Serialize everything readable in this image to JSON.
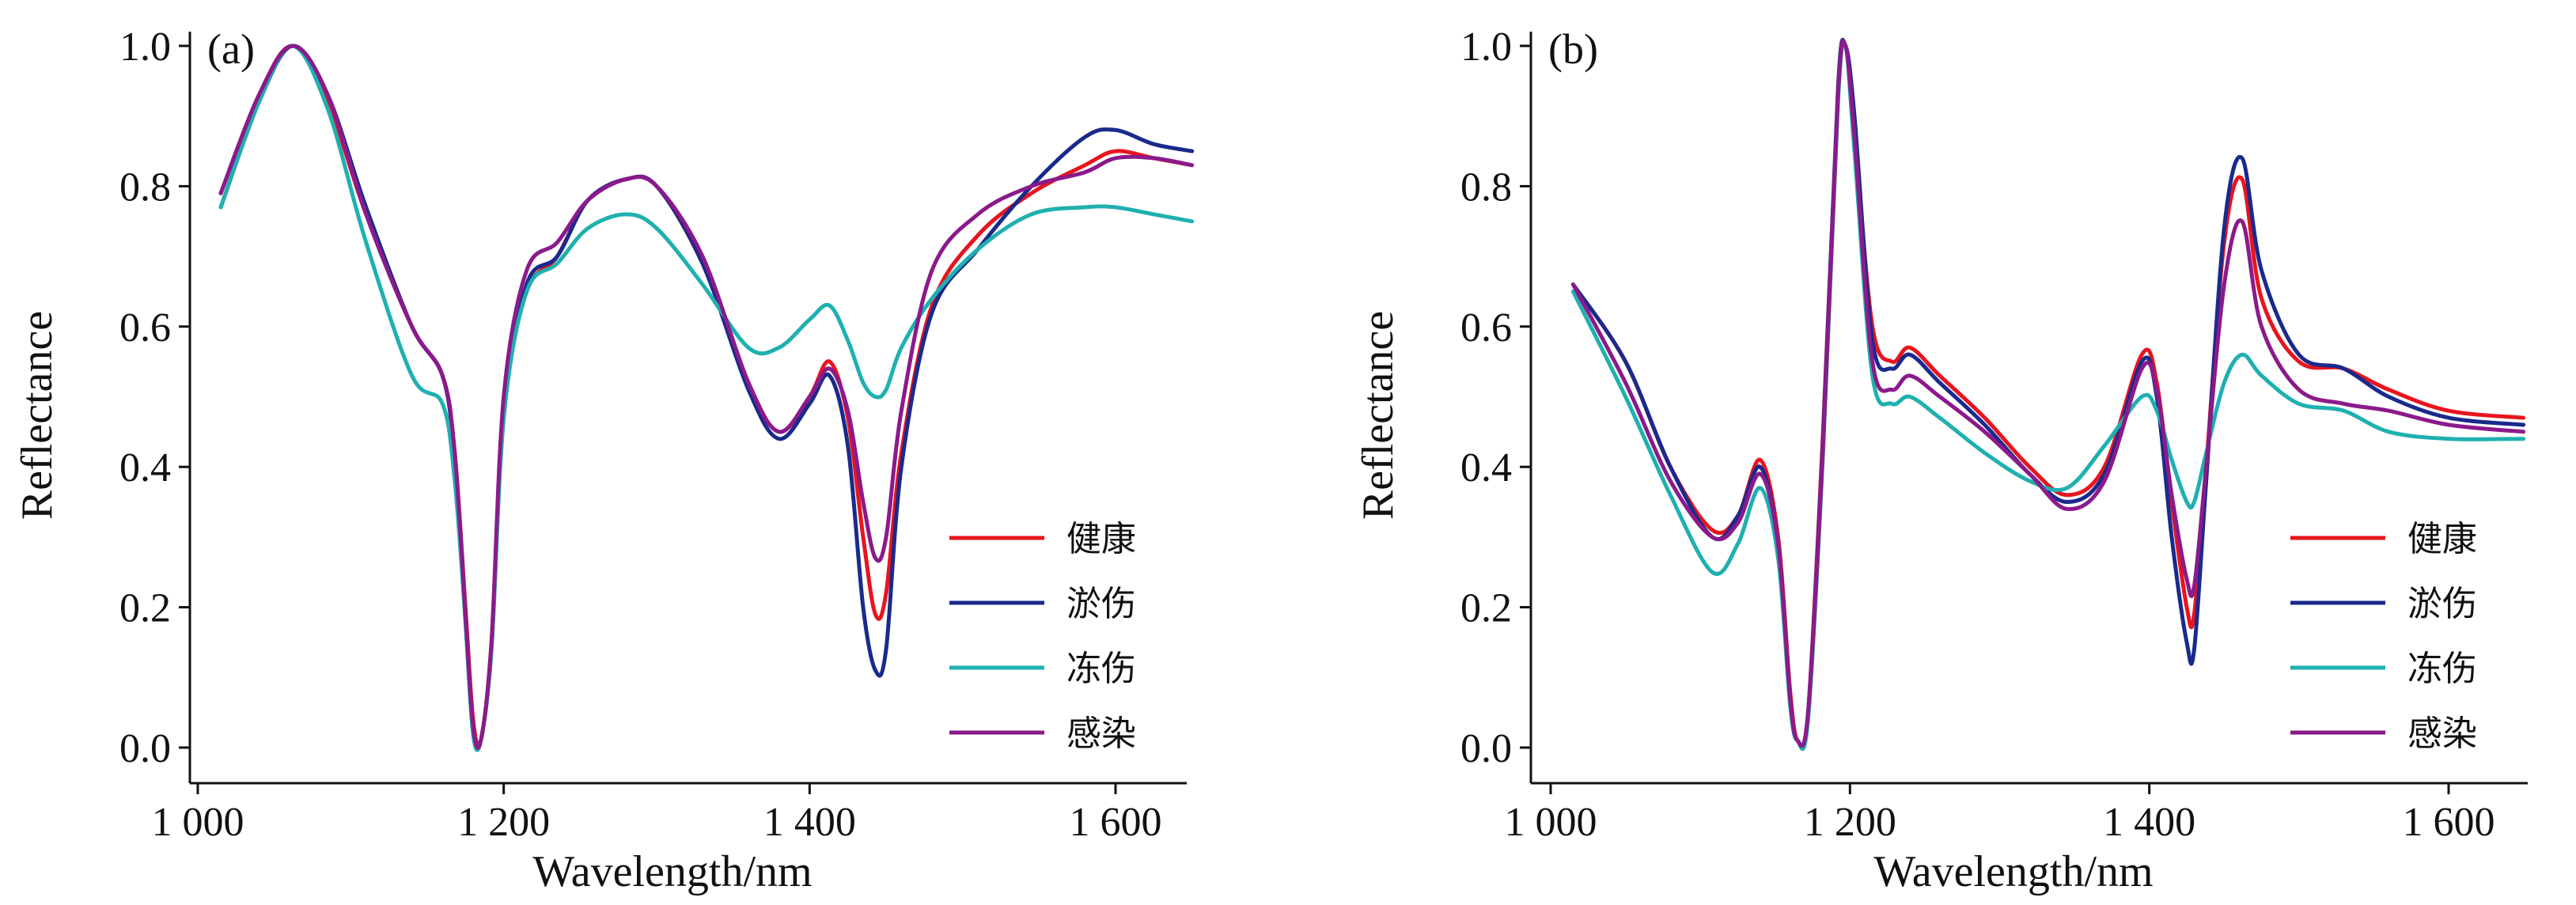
{
  "chart_data": [
    {
      "type": "line",
      "panel_label": "(a)",
      "xlabel": "Wavelength/nm",
      "ylabel": "Reflectance",
      "xlim": [
        1000,
        1650
      ],
      "ylim": [
        0,
        1.0
      ],
      "xticks": [
        1000,
        1200,
        1400,
        1600
      ],
      "xtick_labels": [
        "1 000",
        "1 200",
        "1 400",
        "1 600"
      ],
      "yticks": [
        0.0,
        0.2,
        0.4,
        0.6,
        0.8,
        1.0
      ],
      "ytick_labels": [
        "0.0",
        "0.2",
        "0.4",
        "0.6",
        "0.8",
        "1.0"
      ],
      "legend_position": "lower-right",
      "x": [
        1015,
        1040,
        1062,
        1085,
        1110,
        1140,
        1160,
        1168,
        1175,
        1180,
        1185,
        1192,
        1200,
        1215,
        1235,
        1255,
        1280,
        1300,
        1330,
        1360,
        1380,
        1400,
        1413,
        1425,
        1435,
        1443,
        1450,
        1460,
        1480,
        1510,
        1545,
        1580,
        1600,
        1625,
        1650
      ],
      "series": [
        {
          "name": "健康",
          "color": "#e8141e",
          "values": [
            0.79,
            0.93,
            1.0,
            0.92,
            0.76,
            0.6,
            0.53,
            0.42,
            0.2,
            0.04,
            0.01,
            0.15,
            0.48,
            0.65,
            0.7,
            0.78,
            0.81,
            0.8,
            0.69,
            0.52,
            0.45,
            0.5,
            0.55,
            0.47,
            0.3,
            0.19,
            0.22,
            0.42,
            0.63,
            0.73,
            0.79,
            0.83,
            0.85,
            0.84,
            0.83
          ]
        },
        {
          "name": "淤伤",
          "color": "#1a2a8c",
          "values": [
            0.77,
            0.92,
            1.0,
            0.93,
            0.77,
            0.6,
            0.53,
            0.41,
            0.18,
            0.02,
            0.01,
            0.14,
            0.47,
            0.66,
            0.7,
            0.78,
            0.81,
            0.8,
            0.69,
            0.51,
            0.44,
            0.49,
            0.53,
            0.43,
            0.2,
            0.11,
            0.14,
            0.4,
            0.62,
            0.71,
            0.8,
            0.87,
            0.88,
            0.86,
            0.85
          ]
        },
        {
          "name": "冻伤",
          "color": "#1fb0b0",
          "values": [
            0.77,
            0.92,
            1.0,
            0.91,
            0.72,
            0.53,
            0.49,
            0.38,
            0.18,
            0.02,
            0.01,
            0.14,
            0.47,
            0.65,
            0.69,
            0.74,
            0.76,
            0.74,
            0.66,
            0.57,
            0.57,
            0.61,
            0.63,
            0.58,
            0.52,
            0.5,
            0.51,
            0.57,
            0.64,
            0.71,
            0.76,
            0.77,
            0.77,
            0.76,
            0.75
          ]
        },
        {
          "name": "感染",
          "color": "#8b1a8b",
          "values": [
            0.79,
            0.93,
            1.0,
            0.93,
            0.76,
            0.6,
            0.53,
            0.42,
            0.19,
            0.03,
            0.01,
            0.15,
            0.5,
            0.68,
            0.72,
            0.78,
            0.81,
            0.8,
            0.7,
            0.52,
            0.45,
            0.5,
            0.54,
            0.48,
            0.35,
            0.27,
            0.3,
            0.48,
            0.68,
            0.76,
            0.8,
            0.82,
            0.84,
            0.84,
            0.83
          ]
        }
      ]
    },
    {
      "type": "line",
      "panel_label": "(b)",
      "xlabel": "Wavelength/nm",
      "ylabel": "Reflectance",
      "xlim": [
        1000,
        1650
      ],
      "ylim": [
        0,
        1.0
      ],
      "xticks": [
        1000,
        1200,
        1400,
        1600
      ],
      "xtick_labels": [
        "1 000",
        "1 200",
        "1 400",
        "1 600"
      ],
      "yticks": [
        0.0,
        0.2,
        0.4,
        0.6,
        0.8,
        1.0
      ],
      "ytick_labels": [
        "0.0",
        "0.2",
        "0.4",
        "0.6",
        "0.8",
        "1.0"
      ],
      "legend_position": "lower-right",
      "x": [
        1015,
        1050,
        1080,
        1108,
        1125,
        1140,
        1152,
        1160,
        1165,
        1172,
        1182,
        1192,
        1197,
        1203,
        1215,
        1228,
        1240,
        1260,
        1290,
        1320,
        1345,
        1370,
        1395,
        1405,
        1415,
        1425,
        1430,
        1438,
        1450,
        1462,
        1475,
        1500,
        1530,
        1560,
        1600,
        1650
      ],
      "series": [
        {
          "name": "健康",
          "color": "#e8141e",
          "values": [
            0.66,
            0.55,
            0.4,
            0.31,
            0.33,
            0.41,
            0.3,
            0.08,
            0.01,
            0.05,
            0.45,
            0.93,
            1.0,
            0.88,
            0.6,
            0.55,
            0.57,
            0.53,
            0.47,
            0.4,
            0.36,
            0.4,
            0.56,
            0.52,
            0.35,
            0.2,
            0.19,
            0.4,
            0.72,
            0.81,
            0.64,
            0.55,
            0.54,
            0.51,
            0.48,
            0.47
          ]
        },
        {
          "name": "淤伤",
          "color": "#1a2a8c",
          "values": [
            0.66,
            0.55,
            0.4,
            0.3,
            0.33,
            0.4,
            0.29,
            0.07,
            0.01,
            0.05,
            0.44,
            0.94,
            1.0,
            0.9,
            0.58,
            0.54,
            0.56,
            0.52,
            0.46,
            0.39,
            0.35,
            0.39,
            0.55,
            0.5,
            0.3,
            0.15,
            0.14,
            0.38,
            0.74,
            0.84,
            0.68,
            0.56,
            0.54,
            0.5,
            0.47,
            0.46
          ]
        },
        {
          "name": "冻伤",
          "color": "#1fb0b0",
          "values": [
            0.65,
            0.5,
            0.36,
            0.25,
            0.29,
            0.37,
            0.27,
            0.06,
            0.01,
            0.04,
            0.42,
            0.92,
            1.0,
            0.85,
            0.53,
            0.49,
            0.5,
            0.47,
            0.42,
            0.38,
            0.37,
            0.43,
            0.5,
            0.48,
            0.41,
            0.35,
            0.35,
            0.42,
            0.52,
            0.56,
            0.53,
            0.49,
            0.48,
            0.45,
            0.44,
            0.44
          ]
        },
        {
          "name": "感染",
          "color": "#8b1a8b",
          "values": [
            0.66,
            0.52,
            0.38,
            0.3,
            0.32,
            0.39,
            0.29,
            0.07,
            0.01,
            0.05,
            0.43,
            0.93,
            1.0,
            0.87,
            0.55,
            0.51,
            0.53,
            0.5,
            0.45,
            0.39,
            0.34,
            0.38,
            0.54,
            0.51,
            0.36,
            0.24,
            0.23,
            0.4,
            0.66,
            0.75,
            0.6,
            0.51,
            0.49,
            0.48,
            0.46,
            0.45
          ]
        }
      ]
    }
  ]
}
